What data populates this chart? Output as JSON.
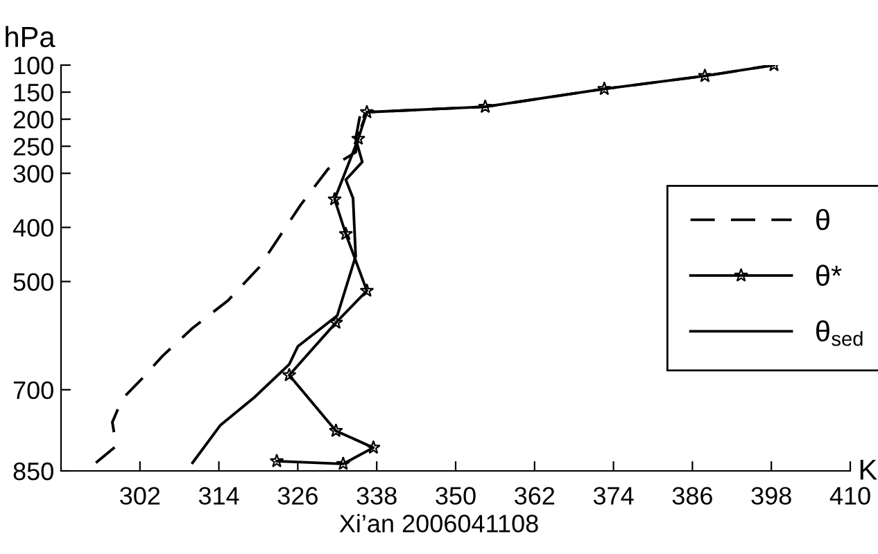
{
  "chart_data": {
    "type": "line",
    "xlabel": "K",
    "ylabel": "hPa",
    "annotations": [
      "Xi’an 2006041108"
    ],
    "xlim": [
      290,
      410
    ],
    "xticks": [
      302,
      314,
      326,
      338,
      350,
      362,
      374,
      386,
      398,
      410
    ],
    "ylim": [
      850,
      100
    ],
    "yticks": [
      100,
      150,
      200,
      250,
      300,
      400,
      500,
      700,
      850
    ],
    "grid": false,
    "legend": "right",
    "series": [
      {
        "name": "θ",
        "color": "#000000",
        "line_style": "dashed",
        "marker": "none",
        "x": [
          295.3,
          298.4,
          297.8,
          299.3,
          302.2,
          305.4,
          310.0,
          315.4,
          320.1,
          326.4,
          330.6,
          334.8,
          335.4,
          336.5,
          354.5,
          372.6,
          387.9,
          398.4
        ],
        "values": [
          835,
          804,
          760,
          717,
          681,
          638,
          586,
          535,
          474,
          359,
          292,
          261,
          223,
          187,
          177,
          144,
          120,
          100
        ]
      },
      {
        "name": "θ*",
        "color": "#000000",
        "line_style": "solid",
        "marker": "star",
        "x": [
          322.8,
          332.9,
          337.5,
          331.8,
          324.7,
          331.8,
          336.5,
          333.3,
          331.6,
          335.2,
          336.5,
          354.5,
          372.6,
          387.9,
          398.4
        ],
        "values": [
          832,
          837,
          807,
          776,
          673,
          576,
          517,
          412,
          348,
          236,
          187,
          177,
          144,
          120,
          100
        ]
      },
      {
        "name": "θ$_{sed}$",
        "color": "#000000",
        "line_style": "solid",
        "marker": "none",
        "x": [
          310.0,
          314.2,
          319.4,
          324.7,
          326.0,
          332.0,
          334.8,
          334.4,
          333.3,
          335.8,
          334.8,
          335.4
        ],
        "values": [
          835,
          766,
          714,
          653,
          620,
          563,
          453,
          346,
          312,
          279,
          236,
          197
        ]
      }
    ]
  }
}
